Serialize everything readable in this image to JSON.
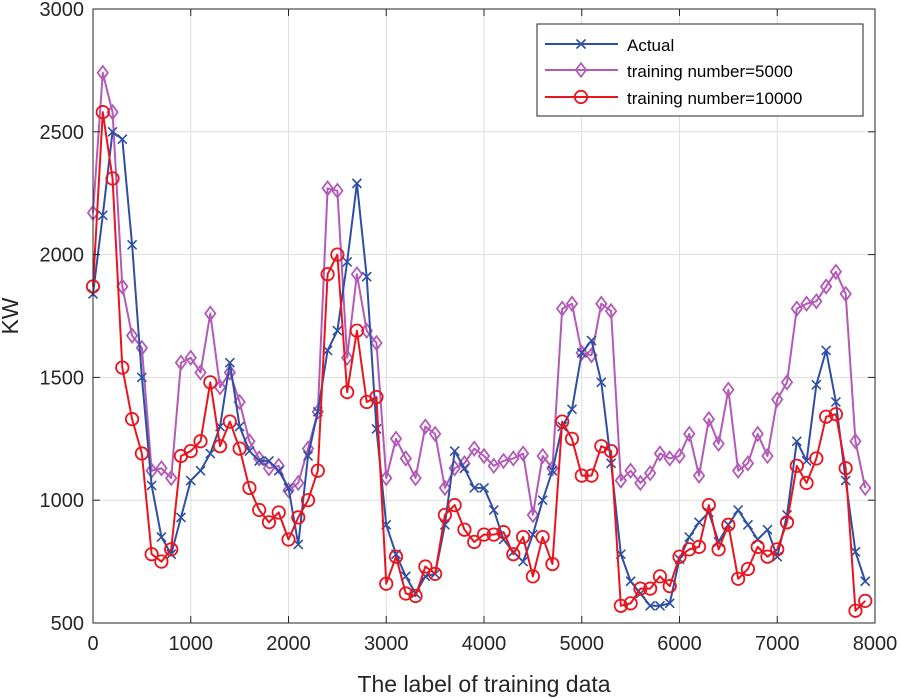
{
  "chart_data": {
    "type": "line",
    "title": "",
    "xlabel": "The label of training data",
    "ylabel": "KW",
    "xlim": [
      0,
      8000
    ],
    "ylim": [
      500,
      3000
    ],
    "grid": true,
    "legend_position": "top-right",
    "x_ticks": [
      0,
      1000,
      2000,
      3000,
      4000,
      5000,
      6000,
      7000,
      8000
    ],
    "y_ticks": [
      500,
      1000,
      1500,
      2000,
      2500,
      3000
    ],
    "x": [
      0,
      100,
      200,
      300,
      400,
      500,
      600,
      700,
      800,
      900,
      1000,
      1100,
      1200,
      1300,
      1400,
      1500,
      1600,
      1700,
      1800,
      1900,
      2000,
      2100,
      2200,
      2300,
      2400,
      2500,
      2600,
      2700,
      2800,
      2900,
      3000,
      3100,
      3200,
      3300,
      3400,
      3500,
      3600,
      3700,
      3800,
      3900,
      4000,
      4100,
      4200,
      4300,
      4400,
      4500,
      4600,
      4700,
      4800,
      4900,
      5000,
      5100,
      5200,
      5300,
      5400,
      5500,
      5600,
      5700,
      5800,
      5900,
      6000,
      6100,
      6200,
      6300,
      6400,
      6500,
      6600,
      6700,
      6800,
      6900,
      7000,
      7100,
      7200,
      7300,
      7400,
      7500,
      7600,
      7700,
      7800,
      7900
    ],
    "series": [
      {
        "name": "Actual",
        "color": "#2E4FA3",
        "marker": "x",
        "values": [
          1840,
          2160,
          2500,
          2470,
          2040,
          1500,
          1060,
          850,
          780,
          930,
          1080,
          1120,
          1190,
          1300,
          1560,
          1300,
          1200,
          1160,
          1160,
          1120,
          1050,
          820,
          1180,
          1360,
          1610,
          1690,
          1970,
          2290,
          1910,
          1290,
          900,
          780,
          690,
          620,
          690,
          700,
          900,
          1200,
          1130,
          1050,
          1050,
          960,
          840,
          790,
          750,
          860,
          1000,
          1120,
          1300,
          1370,
          1600,
          1650,
          1480,
          1150,
          780,
          670,
          620,
          570,
          570,
          580,
          760,
          850,
          910,
          950,
          830,
          900,
          960,
          900,
          840,
          880,
          770,
          940,
          1240,
          1160,
          1470,
          1610,
          1400,
          1080,
          790,
          670
        ]
      },
      {
        "name": "training number=5000",
        "color": "#B35AB8",
        "marker": "diamond",
        "values": [
          2170,
          2740,
          2580,
          1870,
          1670,
          1620,
          1120,
          1130,
          1090,
          1560,
          1580,
          1520,
          1760,
          1460,
          1520,
          1400,
          1240,
          1170,
          1130,
          1140,
          1040,
          1070,
          1210,
          1360,
          2270,
          2260,
          1580,
          1920,
          1690,
          1640,
          1090,
          1250,
          1170,
          1090,
          1300,
          1270,
          1050,
          1130,
          1150,
          1210,
          1180,
          1140,
          1160,
          1170,
          1190,
          940,
          1180,
          1130,
          1780,
          1800,
          1600,
          1590,
          1800,
          1770,
          1080,
          1120,
          1070,
          1110,
          1190,
          1170,
          1180,
          1270,
          1100,
          1330,
          1230,
          1450,
          1120,
          1150,
          1270,
          1180,
          1410,
          1480,
          1780,
          1800,
          1810,
          1870,
          1930,
          1840,
          1240,
          1050
        ]
      },
      {
        "name": "training number=10000",
        "color": "#E8151E",
        "marker": "circle",
        "values": [
          1870,
          2580,
          2310,
          1540,
          1330,
          1190,
          780,
          750,
          800,
          1180,
          1200,
          1240,
          1480,
          1220,
          1320,
          1210,
          1050,
          960,
          910,
          950,
          840,
          930,
          1000,
          1120,
          1920,
          2000,
          1440,
          1690,
          1400,
          1420,
          660,
          770,
          620,
          610,
          730,
          700,
          940,
          980,
          880,
          830,
          860,
          860,
          870,
          780,
          850,
          690,
          850,
          740,
          1320,
          1250,
          1100,
          1100,
          1220,
          1200,
          570,
          580,
          640,
          640,
          690,
          650,
          770,
          800,
          810,
          980,
          800,
          900,
          680,
          720,
          810,
          770,
          800,
          910,
          1140,
          1070,
          1170,
          1340,
          1350,
          1130,
          550,
          590
        ]
      }
    ]
  }
}
